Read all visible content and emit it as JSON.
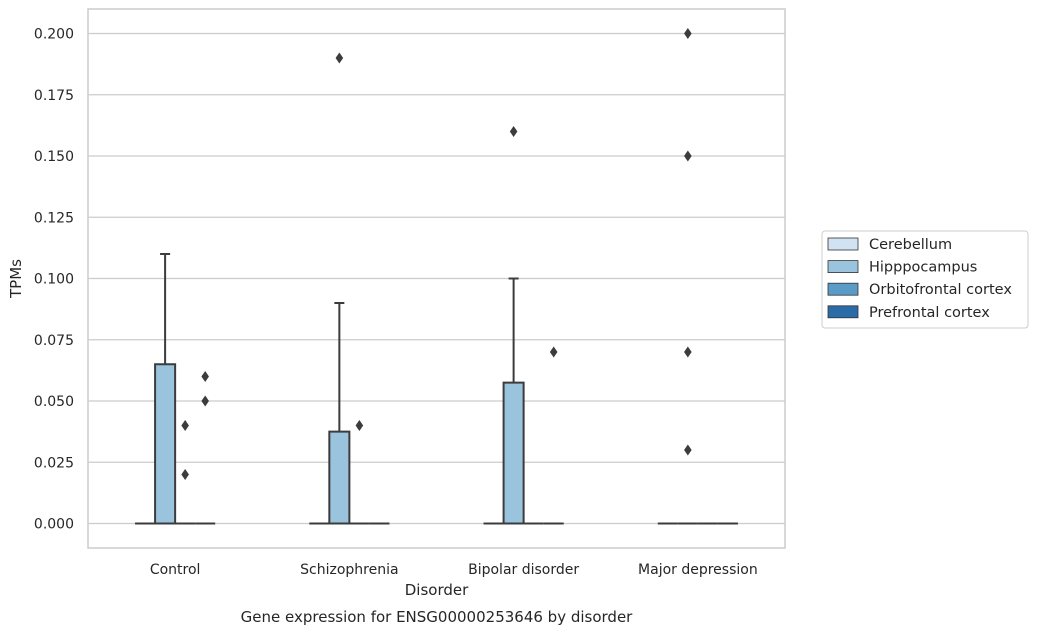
{
  "chart_data": {
    "type": "box",
    "title": "Gene expression for ENSG00000253646 by disorder",
    "xlabel": "Disorder",
    "ylabel": "TPMs",
    "ylim": [
      -0.01,
      0.21
    ],
    "yticks": [
      "0.000",
      "0.025",
      "0.050",
      "0.075",
      "0.100",
      "0.125",
      "0.150",
      "0.175",
      "0.200"
    ],
    "grid": "horizontal",
    "legend_position": "right",
    "categories": [
      "Control",
      "Schizophrenia",
      "Bipolar disorder",
      "Major depression"
    ],
    "series": [
      {
        "name": "Cerebellum",
        "color": "#d1e2f2",
        "boxes": [
          {
            "q1": 0,
            "median": 0,
            "q3": 0,
            "whisker_low": 0,
            "whisker_high": 0,
            "outliers": []
          },
          {
            "q1": 0,
            "median": 0,
            "q3": 0,
            "whisker_low": 0,
            "whisker_high": 0,
            "outliers": []
          },
          {
            "q1": 0,
            "median": 0,
            "q3": 0,
            "whisker_low": 0,
            "whisker_high": 0,
            "outliers": []
          },
          {
            "q1": 0,
            "median": 0,
            "q3": 0,
            "whisker_low": 0,
            "whisker_high": 0,
            "outliers": []
          }
        ]
      },
      {
        "name": "Hipppocampus",
        "color": "#9ac3dd",
        "boxes": [
          {
            "q1": 0,
            "median": 0,
            "q3": 0.065,
            "whisker_low": 0,
            "whisker_high": 0.11,
            "outliers": []
          },
          {
            "q1": 0,
            "median": 0,
            "q3": 0.0375,
            "whisker_low": 0,
            "whisker_high": 0.09,
            "outliers": [
              0.19
            ]
          },
          {
            "q1": 0,
            "median": 0,
            "q3": 0.0575,
            "whisker_low": 0,
            "whisker_high": 0.1,
            "outliers": [
              0.16
            ]
          },
          {
            "q1": 0,
            "median": 0,
            "q3": 0,
            "whisker_low": 0,
            "whisker_high": 0,
            "outliers": [
              0.2,
              0.15,
              0.07,
              0.03
            ]
          }
        ]
      },
      {
        "name": "Orbitofrontal cortex",
        "color": "#5b9bc8",
        "boxes": [
          {
            "q1": 0,
            "median": 0,
            "q3": 0,
            "whisker_low": 0,
            "whisker_high": 0,
            "outliers": [
              0.04,
              0.02
            ]
          },
          {
            "q1": 0,
            "median": 0,
            "q3": 0,
            "whisker_low": 0,
            "whisker_high": 0,
            "outliers": [
              0.04
            ]
          },
          {
            "q1": 0,
            "median": 0,
            "q3": 0,
            "whisker_low": 0,
            "whisker_high": 0,
            "outliers": []
          },
          {
            "q1": 0,
            "median": 0,
            "q3": 0,
            "whisker_low": 0,
            "whisker_high": 0,
            "outliers": []
          }
        ]
      },
      {
        "name": "Prefrontal cortex",
        "color": "#2b6ba8",
        "boxes": [
          {
            "q1": 0,
            "median": 0,
            "q3": 0,
            "whisker_low": 0,
            "whisker_high": 0,
            "outliers": [
              0.06,
              0.05
            ]
          },
          {
            "q1": 0,
            "median": 0,
            "q3": 0,
            "whisker_low": 0,
            "whisker_high": 0,
            "outliers": []
          },
          {
            "q1": 0,
            "median": 0,
            "q3": 0,
            "whisker_low": 0,
            "whisker_high": 0,
            "outliers": [
              0.07
            ]
          },
          {
            "q1": 0,
            "median": 0,
            "q3": 0,
            "whisker_low": 0,
            "whisker_high": 0,
            "outliers": []
          }
        ]
      }
    ]
  }
}
